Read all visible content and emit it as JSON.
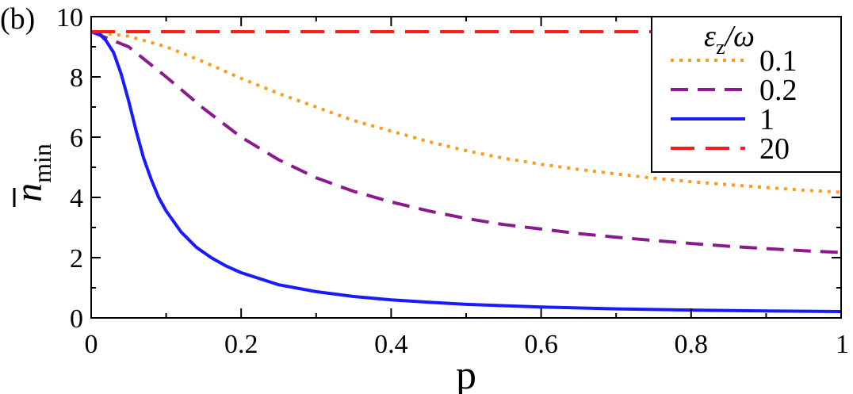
{
  "panel_label": "(b)",
  "chart_data": {
    "type": "line",
    "xlabel": "p",
    "ylabel": {
      "base": "n",
      "subscript": "min",
      "overbar": true
    },
    "xlim": [
      0,
      1
    ],
    "ylim": [
      0,
      10
    ],
    "xticks": [
      0,
      0.2,
      0.4,
      0.6,
      0.8,
      1
    ],
    "xtick_labels": [
      "0",
      "0.2",
      "0.4",
      "0.6",
      "0.8",
      "1"
    ],
    "yticks": [
      0,
      2,
      4,
      6,
      8,
      10
    ],
    "ytick_labels": [
      "0",
      "2",
      "4",
      "6",
      "8",
      "10"
    ],
    "grid": false,
    "legend": {
      "position": "top-right",
      "title": {
        "base": "ε",
        "subscript": "z",
        "rest": "/ω"
      }
    },
    "series": [
      {
        "name": "0.1",
        "color": "#FF9A1A",
        "dash": "dotted",
        "x": [
          0,
          0.05,
          0.1,
          0.15,
          0.2,
          0.25,
          0.3,
          0.35,
          0.4,
          0.45,
          0.5,
          0.55,
          0.6,
          0.65,
          0.7,
          0.75,
          0.8,
          0.85,
          0.9,
          0.95,
          1.0
        ],
        "y": [
          9.5,
          9.35,
          9.0,
          8.5,
          7.95,
          7.45,
          7.0,
          6.55,
          6.2,
          5.85,
          5.55,
          5.3,
          5.1,
          4.93,
          4.78,
          4.64,
          4.52,
          4.42,
          4.33,
          4.24,
          4.17
        ]
      },
      {
        "name": "0.2",
        "color": "#8B1A8C",
        "dash": "dashed",
        "x": [
          0,
          0.05,
          0.1,
          0.15,
          0.2,
          0.25,
          0.3,
          0.35,
          0.4,
          0.45,
          0.5,
          0.55,
          0.6,
          0.65,
          0.7,
          0.75,
          0.8,
          0.85,
          0.9,
          0.95,
          1.0
        ],
        "y": [
          9.5,
          9.0,
          8.0,
          6.95,
          6.0,
          5.25,
          4.65,
          4.2,
          3.85,
          3.55,
          3.3,
          3.1,
          2.95,
          2.8,
          2.68,
          2.57,
          2.47,
          2.38,
          2.3,
          2.23,
          2.17
        ]
      },
      {
        "name": "1",
        "color": "#1A1AFF",
        "dash": "solid",
        "x": [
          0,
          0.01,
          0.02,
          0.03,
          0.04,
          0.05,
          0.06,
          0.07,
          0.08,
          0.09,
          0.1,
          0.12,
          0.14,
          0.16,
          0.18,
          0.2,
          0.25,
          0.3,
          0.35,
          0.4,
          0.45,
          0.5,
          0.6,
          0.7,
          0.8,
          0.9,
          1.0
        ],
        "y": [
          9.5,
          9.45,
          9.2,
          8.8,
          8.1,
          7.2,
          6.2,
          5.3,
          4.6,
          4.0,
          3.55,
          2.85,
          2.35,
          2.0,
          1.72,
          1.5,
          1.1,
          0.87,
          0.71,
          0.6,
          0.52,
          0.45,
          0.36,
          0.3,
          0.26,
          0.23,
          0.21
        ]
      },
      {
        "name": "20",
        "color": "#FF1A1A",
        "dash": "longdash",
        "x": [
          0,
          1.0
        ],
        "y": [
          9.5,
          9.5
        ]
      }
    ]
  }
}
